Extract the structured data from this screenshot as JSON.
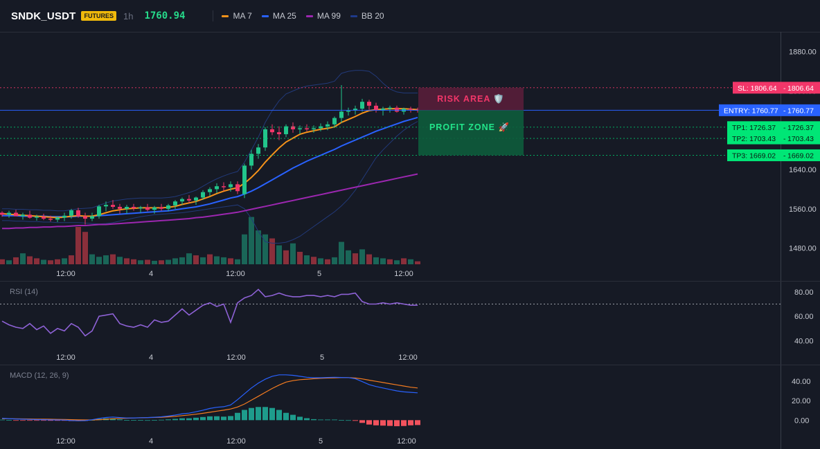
{
  "header": {
    "symbol": "SNDK_USDT",
    "badge": "FUTURES",
    "interval": "1h",
    "last_price": "1760.94",
    "legend": [
      {
        "label": "MA 7",
        "color": "#f7931a"
      },
      {
        "label": "MA 25",
        "color": "#2962ff"
      },
      {
        "label": "MA 99",
        "color": "#9c27b0"
      },
      {
        "label": "BB 20",
        "color": "#1e3a8a"
      }
    ]
  },
  "main_axis": {
    "labels": [
      "1880.00",
      "1800.00",
      "1640.00",
      "1560.00",
      "1480.00"
    ],
    "values": [
      1880,
      1800,
      1640,
      1560,
      1480
    ]
  },
  "time_axis": {
    "labels": [
      "12:00",
      "4",
      "12:00",
      "5",
      "12:00"
    ]
  },
  "levels": {
    "sl": {
      "tag": "SL: 1806.64",
      "value_text": "1806.64",
      "price": 1806.64,
      "color": "#f23669"
    },
    "entry": {
      "tag": "ENTRY: 1760.77",
      "value_text": "1760.77",
      "price": 1760.77,
      "color": "#2962ff"
    },
    "tp1": {
      "tag": "TP1: 1726.37",
      "value_text": "1726.37",
      "price": 1726.37,
      "color": "#00e676"
    },
    "tp2": {
      "tag": "TP2: 1703.43",
      "value_text": "1703.43",
      "price": 1703.43,
      "color": "#00e676"
    },
    "tp3": {
      "tag": "TP3: 1669.02",
      "value_text": "1669.02",
      "price": 1669.02,
      "color": "#00e676"
    }
  },
  "zones": {
    "risk_label": "RISK AREA 🛡️",
    "profit_label": "PROFIT ZONE 🚀"
  },
  "rsi": {
    "title": "RSI (14)",
    "labels": [
      "80.00",
      "60.00",
      "40.00"
    ],
    "values": [
      80,
      60,
      40
    ],
    "overbought": 70,
    "series": [
      56,
      53,
      51,
      50,
      54,
      49,
      52,
      46,
      50,
      48,
      54,
      51,
      44,
      48,
      60,
      61,
      62,
      54,
      52,
      51,
      53,
      51,
      57,
      55,
      56,
      61,
      66,
      61,
      65,
      69,
      71,
      68,
      70,
      55,
      71,
      75,
      77,
      82,
      76,
      77,
      79,
      77,
      76,
      76,
      77,
      77,
      76,
      77,
      76,
      78,
      78,
      79,
      72,
      70,
      70,
      71,
      70,
      71,
      70,
      69,
      69
    ]
  },
  "macd": {
    "title": "MACD (12, 26, 9)",
    "labels": [
      "40.00",
      "20.00",
      "0.00"
    ],
    "values": [
      40,
      20,
      0
    ],
    "macd_line": [
      2,
      1.6,
      1.2,
      1,
      0.8,
      0.6,
      0.5,
      0.3,
      0.2,
      0.1,
      -0.4,
      -0.6,
      -0.5,
      0.4,
      1.8,
      2.7,
      3.2,
      2.6,
      2.2,
      2.3,
      2.5,
      2.6,
      3,
      3.4,
      4.2,
      5.2,
      6.5,
      7.2,
      8.6,
      10.2,
      12,
      13.2,
      13.8,
      15.6,
      21,
      27,
      33,
      38,
      42,
      45,
      46.5,
      46.5,
      46,
      45,
      44,
      43.5,
      43.5,
      43.8,
      44,
      43.8,
      43.6,
      42.5,
      39.5,
      36.5,
      34.5,
      33,
      31.5,
      30,
      29,
      28.5,
      28
    ],
    "signal_line": [
      1.6,
      1.5,
      1.4,
      1.3,
      1.2,
      1.1,
      1,
      0.9,
      0.8,
      0.7,
      0.5,
      0.3,
      0.2,
      0.2,
      0.5,
      0.9,
      1.4,
      1.8,
      2,
      2.2,
      2.4,
      2.6,
      2.8,
      3,
      3.4,
      3.9,
      4.6,
      5.3,
      6.1,
      7,
      8.1,
      9.2,
      10.2,
      11.4,
      13.5,
      16.5,
      20.5,
      24.5,
      28.5,
      32.5,
      36,
      39,
      40.5,
      41.5,
      42,
      42.5,
      42.9,
      43.2,
      43.4,
      43.6,
      43.6,
      43.2,
      42.3,
      41,
      39.8,
      38.6,
      37.4,
      36.2,
      35,
      33.8,
      33
    ],
    "histogram": [
      0.5,
      0.1,
      -0.2,
      -0.3,
      -0.4,
      -0.5,
      -0.5,
      -0.6,
      -0.6,
      -0.6,
      -0.9,
      -0.9,
      -0.7,
      0.2,
      1.3,
      1.8,
      1.8,
      0.8,
      0.2,
      0.1,
      0.1,
      0,
      0.2,
      0.4,
      0.8,
      1.3,
      1.9,
      1.9,
      2.5,
      3.2,
      3.9,
      4,
      3.6,
      4.2,
      7.5,
      10.5,
      12.5,
      13.5,
      13.5,
      12.5,
      10.5,
      7.5,
      5.5,
      3.5,
      2,
      1,
      0.6,
      0.6,
      0.6,
      0.2,
      0,
      -0.7,
      -2.8,
      -4.5,
      -5.3,
      -5.6,
      -5.9,
      -6.2,
      -6,
      -5.3,
      -5
    ]
  },
  "chart_data": {
    "type": "candlestick",
    "interval": "1h",
    "y_range": [
      1440,
      1905
    ],
    "candles": [
      [
        1552,
        1555,
        1544,
        1548
      ],
      [
        1548,
        1556,
        1542,
        1552
      ],
      [
        1552,
        1558,
        1546,
        1545
      ],
      [
        1545,
        1552,
        1538,
        1548
      ],
      [
        1548,
        1556,
        1540,
        1542
      ],
      [
        1542,
        1548,
        1536,
        1544
      ],
      [
        1544,
        1550,
        1537,
        1540
      ],
      [
        1540,
        1546,
        1534,
        1538
      ],
      [
        1538,
        1545,
        1533,
        1542
      ],
      [
        1542,
        1552,
        1535,
        1546
      ],
      [
        1546,
        1560,
        1540,
        1557
      ],
      [
        1557,
        1562,
        1542,
        1545
      ],
      [
        1545,
        1552,
        1528,
        1540
      ],
      [
        1540,
        1552,
        1535,
        1545
      ],
      [
        1545,
        1568,
        1540,
        1565
      ],
      [
        1565,
        1575,
        1555,
        1568
      ],
      [
        1568,
        1578,
        1560,
        1564
      ],
      [
        1564,
        1570,
        1550,
        1560
      ],
      [
        1560,
        1568,
        1550,
        1564
      ],
      [
        1564,
        1570,
        1556,
        1561
      ],
      [
        1561,
        1566,
        1552,
        1563
      ],
      [
        1563,
        1570,
        1555,
        1558
      ],
      [
        1558,
        1566,
        1550,
        1563
      ],
      [
        1563,
        1570,
        1556,
        1560
      ],
      [
        1560,
        1570,
        1555,
        1567
      ],
      [
        1567,
        1578,
        1560,
        1575
      ],
      [
        1575,
        1583,
        1568,
        1580
      ],
      [
        1580,
        1588,
        1572,
        1577
      ],
      [
        1577,
        1585,
        1568,
        1583
      ],
      [
        1583,
        1598,
        1578,
        1594
      ],
      [
        1594,
        1604,
        1586,
        1600
      ],
      [
        1600,
        1612,
        1592,
        1606
      ],
      [
        1606,
        1614,
        1596,
        1604
      ],
      [
        1604,
        1616,
        1595,
        1610
      ],
      [
        1610,
        1616,
        1590,
        1596
      ],
      [
        1590,
        1652,
        1582,
        1648
      ],
      [
        1648,
        1680,
        1640,
        1672
      ],
      [
        1672,
        1692,
        1662,
        1685
      ],
      [
        1685,
        1726,
        1678,
        1722
      ],
      [
        1722,
        1732,
        1710,
        1716
      ],
      [
        1716,
        1728,
        1700,
        1712
      ],
      [
        1712,
        1732,
        1706,
        1728
      ],
      [
        1728,
        1736,
        1715,
        1722
      ],
      [
        1722,
        1730,
        1712,
        1724
      ],
      [
        1724,
        1732,
        1718,
        1722
      ],
      [
        1722,
        1730,
        1715,
        1724
      ],
      [
        1724,
        1734,
        1718,
        1728
      ],
      [
        1728,
        1738,
        1720,
        1732
      ],
      [
        1732,
        1748,
        1725,
        1745
      ],
      [
        1745,
        1812,
        1735,
        1758
      ],
      [
        1758,
        1766,
        1750,
        1760
      ],
      [
        1760,
        1770,
        1752,
        1764
      ],
      [
        1764,
        1784,
        1758,
        1778
      ],
      [
        1778,
        1782,
        1762,
        1770
      ],
      [
        1770,
        1776,
        1756,
        1760
      ],
      [
        1760,
        1768,
        1750,
        1764
      ],
      [
        1764,
        1770,
        1756,
        1766
      ],
      [
        1766,
        1770,
        1756,
        1758
      ],
      [
        1758,
        1766,
        1752,
        1764
      ],
      [
        1764,
        1768,
        1756,
        1762
      ],
      [
        1762,
        1766,
        1756,
        1760
      ]
    ],
    "ma7": [
      1550,
      1549,
      1548,
      1547,
      1546,
      1545,
      1544,
      1543,
      1542,
      1543,
      1545,
      1546,
      1545,
      1545,
      1548,
      1552,
      1556,
      1558,
      1560,
      1561,
      1562,
      1562,
      1562,
      1562,
      1563,
      1565,
      1569,
      1572,
      1575,
      1580,
      1585,
      1591,
      1596,
      1600,
      1603,
      1612,
      1624,
      1638,
      1655,
      1670,
      1684,
      1696,
      1704,
      1712,
      1716,
      1719,
      1722,
      1724,
      1727,
      1736,
      1742,
      1748,
      1755,
      1760,
      1762,
      1763,
      1764,
      1764,
      1764,
      1763,
      1762
    ],
    "ma25": [
      1546,
      1546,
      1546,
      1545,
      1545,
      1545,
      1545,
      1544,
      1544,
      1544,
      1544,
      1545,
      1545,
      1545,
      1546,
      1547,
      1548,
      1549,
      1550,
      1551,
      1552,
      1553,
      1554,
      1555,
      1556,
      1558,
      1560,
      1562,
      1564,
      1567,
      1570,
      1574,
      1578,
      1582,
      1585,
      1590,
      1596,
      1603,
      1611,
      1619,
      1627,
      1635,
      1643,
      1650,
      1657,
      1663,
      1669,
      1675,
      1681,
      1688,
      1694,
      1700,
      1706,
      1712,
      1718,
      1723,
      1728,
      1733,
      1738,
      1742,
      1746
    ],
    "ma99": [
      1520,
      1520,
      1521,
      1521,
      1522,
      1522,
      1523,
      1523,
      1524,
      1524,
      1525,
      1526,
      1526,
      1527,
      1528,
      1528,
      1529,
      1530,
      1531,
      1532,
      1533,
      1534,
      1535,
      1536,
      1537,
      1538,
      1539,
      1540,
      1542,
      1543,
      1545,
      1547,
      1549,
      1551,
      1553,
      1556,
      1559,
      1562,
      1565,
      1568,
      1571,
      1574,
      1577,
      1580,
      1583,
      1586,
      1589,
      1592,
      1595,
      1598,
      1601,
      1604,
      1607,
      1610,
      1613,
      1616,
      1619,
      1622,
      1625,
      1628,
      1631
    ],
    "bb_upper": [
      1560,
      1560,
      1559,
      1559,
      1558,
      1558,
      1557,
      1557,
      1556,
      1556,
      1558,
      1560,
      1561,
      1562,
      1567,
      1572,
      1576,
      1578,
      1580,
      1581,
      1582,
      1582,
      1582,
      1582,
      1583,
      1585,
      1589,
      1593,
      1598,
      1606,
      1614,
      1621,
      1627,
      1632,
      1636,
      1655,
      1680,
      1706,
      1736,
      1760,
      1780,
      1794,
      1800,
      1806,
      1810,
      1812,
      1814,
      1816,
      1820,
      1836,
      1840,
      1842,
      1842,
      1840,
      1830,
      1816,
      1804,
      1798,
      1796,
      1796,
      1796
    ],
    "bb_lower": [
      1536,
      1536,
      1535,
      1535,
      1534,
      1534,
      1533,
      1533,
      1532,
      1532,
      1532,
      1532,
      1531,
      1530,
      1529,
      1530,
      1532,
      1535,
      1538,
      1541,
      1544,
      1546,
      1548,
      1549,
      1550,
      1551,
      1552,
      1554,
      1556,
      1558,
      1560,
      1562,
      1564,
      1566,
      1568,
      1560,
      1540,
      1514,
      1493,
      1490,
      1490,
      1492,
      1497,
      1504,
      1514,
      1524,
      1534,
      1544,
      1554,
      1566,
      1580,
      1598,
      1620,
      1642,
      1664,
      1680,
      1694,
      1708,
      1720,
      1730,
      1738
    ],
    "volume": [
      [
        10,
        0
      ],
      [
        8,
        1
      ],
      [
        14,
        0
      ],
      [
        22,
        1
      ],
      [
        16,
        0
      ],
      [
        12,
        0
      ],
      [
        9,
        1
      ],
      [
        8,
        0
      ],
      [
        10,
        0
      ],
      [
        12,
        1
      ],
      [
        18,
        0
      ],
      [
        75,
        0
      ],
      [
        65,
        0
      ],
      [
        20,
        1
      ],
      [
        15,
        1
      ],
      [
        18,
        1
      ],
      [
        20,
        0
      ],
      [
        15,
        1
      ],
      [
        12,
        0
      ],
      [
        10,
        0
      ],
      [
        8,
        1
      ],
      [
        9,
        0
      ],
      [
        7,
        1
      ],
      [
        8,
        0
      ],
      [
        9,
        1
      ],
      [
        12,
        1
      ],
      [
        14,
        1
      ],
      [
        22,
        1
      ],
      [
        18,
        0
      ],
      [
        14,
        1
      ],
      [
        20,
        0
      ],
      [
        16,
        1
      ],
      [
        14,
        1
      ],
      [
        12,
        0
      ],
      [
        10,
        1
      ],
      [
        60,
        1
      ],
      [
        95,
        1
      ],
      [
        68,
        1
      ],
      [
        60,
        1
      ],
      [
        52,
        0
      ],
      [
        38,
        1
      ],
      [
        28,
        0
      ],
      [
        42,
        1
      ],
      [
        25,
        0
      ],
      [
        18,
        1
      ],
      [
        15,
        0
      ],
      [
        12,
        1
      ],
      [
        10,
        0
      ],
      [
        14,
        1
      ],
      [
        45,
        1
      ],
      [
        28,
        1
      ],
      [
        22,
        0
      ],
      [
        30,
        1
      ],
      [
        20,
        0
      ],
      [
        14,
        1
      ],
      [
        12,
        1
      ],
      [
        10,
        0
      ],
      [
        8,
        1
      ],
      [
        12,
        0
      ],
      [
        10,
        1
      ],
      [
        6,
        0
      ]
    ]
  }
}
